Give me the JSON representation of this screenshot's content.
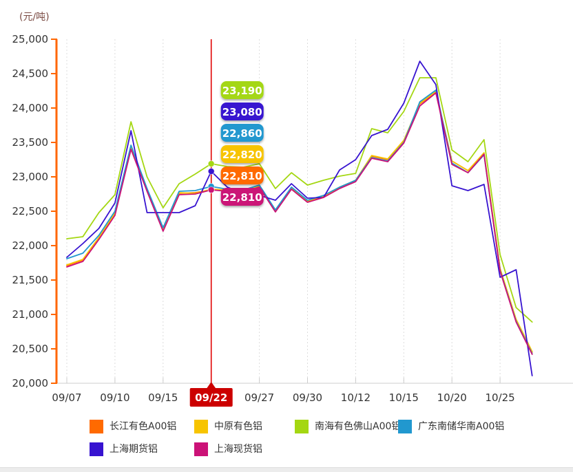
{
  "unit_label": "(元/吨)",
  "chart_data": {
    "type": "line",
    "title": "",
    "ylabel": "(元/吨)",
    "ylim": [
      20000,
      25000
    ],
    "y_tick_step": 500,
    "y_tick_labels": [
      "25,000",
      "24,500",
      "24,000",
      "23,500",
      "23,000",
      "22,500",
      "22,000",
      "21,500",
      "21,000",
      "20,500",
      "20,000"
    ],
    "x_labels": [
      "09/07",
      "09/10",
      "09/15",
      "09/22",
      "09/27",
      "09/30",
      "10/12",
      "10/15",
      "10/20",
      "10/25"
    ],
    "label_indices": [
      0,
      3,
      6,
      9,
      12,
      15,
      18,
      21,
      24,
      27
    ],
    "grid": "vertical-dashed",
    "legend_position": "bottom",
    "selected": {
      "label": "09/22",
      "index": 9,
      "line_color": "#e00000",
      "box_color": "#cc0000",
      "box_text": "09/22"
    },
    "tooltips": [
      {
        "value": "23,190",
        "color": "#a4d712"
      },
      {
        "value": "23,080",
        "color": "#3713d0"
      },
      {
        "value": "22,860",
        "color": "#2198cf"
      },
      {
        "value": "22,820",
        "color": "#f7c400"
      },
      {
        "value": "22,810",
        "color": "#ff6a00"
      },
      {
        "value": "22,810",
        "color": "#cb1277"
      }
    ],
    "series": [
      {
        "name": "长江有色A00铝",
        "color": "#ff6a00",
        "values": [
          21710,
          21790,
          22110,
          22460,
          23420,
          22800,
          22230,
          22760,
          22770,
          22810,
          22800,
          22790,
          22860,
          22500,
          22830,
          22640,
          22710,
          22840,
          22940,
          23300,
          23250,
          23520,
          24060,
          24230,
          23230,
          23090,
          23340,
          21660,
          20920,
          20450
        ]
      },
      {
        "name": "中原有色铝",
        "color": "#f7c400",
        "values": [
          21720,
          21800,
          22120,
          22470,
          23430,
          22810,
          22240,
          22770,
          22760,
          22820,
          22810,
          22800,
          22870,
          22510,
          22840,
          22650,
          22720,
          22850,
          22950,
          23310,
          23260,
          23530,
          24070,
          24240,
          23230,
          23090,
          23350,
          21670,
          20930,
          20460
        ]
      },
      {
        "name": "南海有色佛山A00铝",
        "color": "#a4d712",
        "values": [
          22100,
          22130,
          22480,
          22740,
          23800,
          23000,
          22550,
          22900,
          23040,
          23190,
          23150,
          23140,
          23190,
          22830,
          23060,
          22880,
          22950,
          23010,
          23050,
          23700,
          23640,
          23950,
          24440,
          24440,
          23390,
          23220,
          23540,
          21870,
          21100,
          20890
        ]
      },
      {
        "name": "广东南储华南A00铝",
        "color": "#2198cf",
        "values": [
          21810,
          21890,
          22150,
          22500,
          23460,
          22830,
          22260,
          22790,
          22800,
          22860,
          22820,
          22810,
          22880,
          22520,
          22850,
          22660,
          22730,
          22850,
          22950,
          23280,
          23230,
          23500,
          24090,
          24260,
          23200,
          23060,
          23320,
          21640,
          20900,
          20430
        ]
      },
      {
        "name": "上海期货铝",
        "color": "#3713d0",
        "values": [
          21830,
          22030,
          22250,
          22620,
          23670,
          22480,
          22480,
          22480,
          22580,
          23080,
          22850,
          22760,
          22730,
          22660,
          22900,
          22690,
          22700,
          23100,
          23250,
          23600,
          23690,
          24070,
          24680,
          24340,
          22870,
          22800,
          22890,
          21540,
          21650,
          20110
        ]
      },
      {
        "name": "上海现货铝",
        "color": "#cb1277",
        "values": [
          21690,
          21770,
          22090,
          22440,
          23400,
          22790,
          22210,
          22740,
          22750,
          22810,
          22790,
          22780,
          22850,
          22490,
          22820,
          22630,
          22700,
          22830,
          22930,
          23270,
          23220,
          23490,
          24030,
          24220,
          23180,
          23060,
          23330,
          21630,
          20890,
          20420
        ]
      }
    ],
    "legend_rows": [
      [
        "长江有色A00铝",
        "中原有色铝",
        "南海有色佛山A00铝",
        "广东南储华南A00铝"
      ],
      [
        "上海期货铝",
        "上海现货铝"
      ]
    ]
  }
}
